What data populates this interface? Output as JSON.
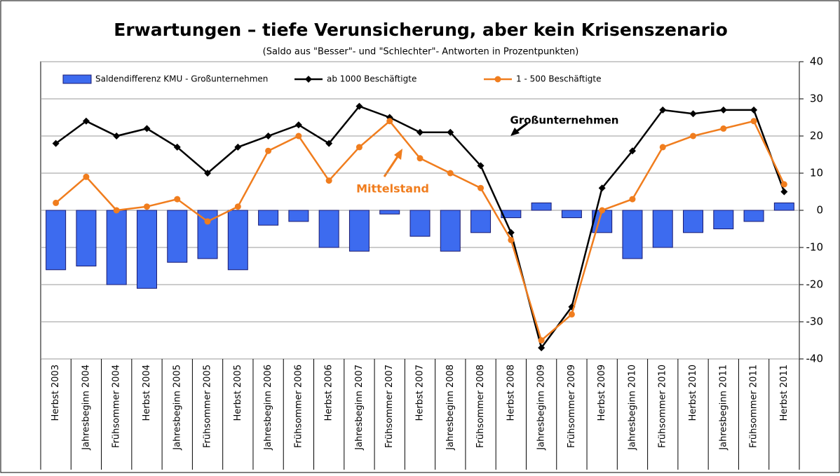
{
  "chart_data": {
    "type": "bar_line",
    "title": "Erwartungen – tiefe Verunsicherung, aber kein Krisenszenario",
    "subtitle": "(Saldo aus \"Besser\"- und \"Schlechter\"- Antworten in Prozentpunkten)",
    "categories": [
      "Herbst 2003",
      "Jahresbeginn 2004",
      "Frühsommer 2004",
      "Herbst 2004",
      "Jahresbeginn 2005",
      "Frühsommer 2005",
      "Herbst 2005",
      "Jahresbeginn 2006",
      "Frühsommer 2006",
      "Herbst 2006",
      "Jahresbeginn 2007",
      "Frühsommer 2007",
      "Herbst 2007",
      "Jahresbeginn 2008",
      "Frühsommer 2008",
      "Herbst 2008",
      "Jahresbeginn 2009",
      "Frühsommer 2009",
      "Herbst 2009",
      "Jahresbeginn 2010",
      "Frühsommer 2010",
      "Herbst 2010",
      "Jahresbeginn 2011",
      "Frühsommer 2011",
      "Herbst 2011"
    ],
    "series": [
      {
        "name": "Saldendifferenz KMU - Großunternehmen",
        "kind": "bar",
        "color": "#3d6bef",
        "values": [
          -16,
          -15,
          -20,
          -21,
          -14,
          -13,
          -16,
          -4,
          -3,
          -10,
          -11,
          -1,
          -7,
          -11,
          -6,
          -2,
          2,
          -2,
          -6,
          -13,
          -10,
          -6,
          -5,
          -3,
          2
        ]
      },
      {
        "name": "ab 1000 Beschäftigte",
        "kind": "line",
        "color": "#000000",
        "values": [
          18,
          24,
          20,
          22,
          17,
          10,
          17,
          20,
          23,
          18,
          28,
          25,
          21,
          21,
          12,
          -6,
          -37,
          -26,
          6,
          16,
          27,
          26,
          27,
          27,
          5
        ]
      },
      {
        "name": "1 - 500 Beschäftigte",
        "kind": "line",
        "color": "#f07d1e",
        "values": [
          2,
          9,
          0,
          1,
          3,
          -3,
          1,
          16,
          20,
          8,
          17,
          24,
          14,
          10,
          6,
          -8,
          -35,
          -28,
          0,
          3,
          17,
          20,
          22,
          24,
          7
        ]
      }
    ],
    "annotations": [
      "Großunternehmen",
      "Mittelstand"
    ],
    "ylim": [
      -40,
      40
    ],
    "yticks": [
      -40,
      -30,
      -20,
      -10,
      0,
      10,
      20,
      30,
      40
    ],
    "grid": true
  }
}
